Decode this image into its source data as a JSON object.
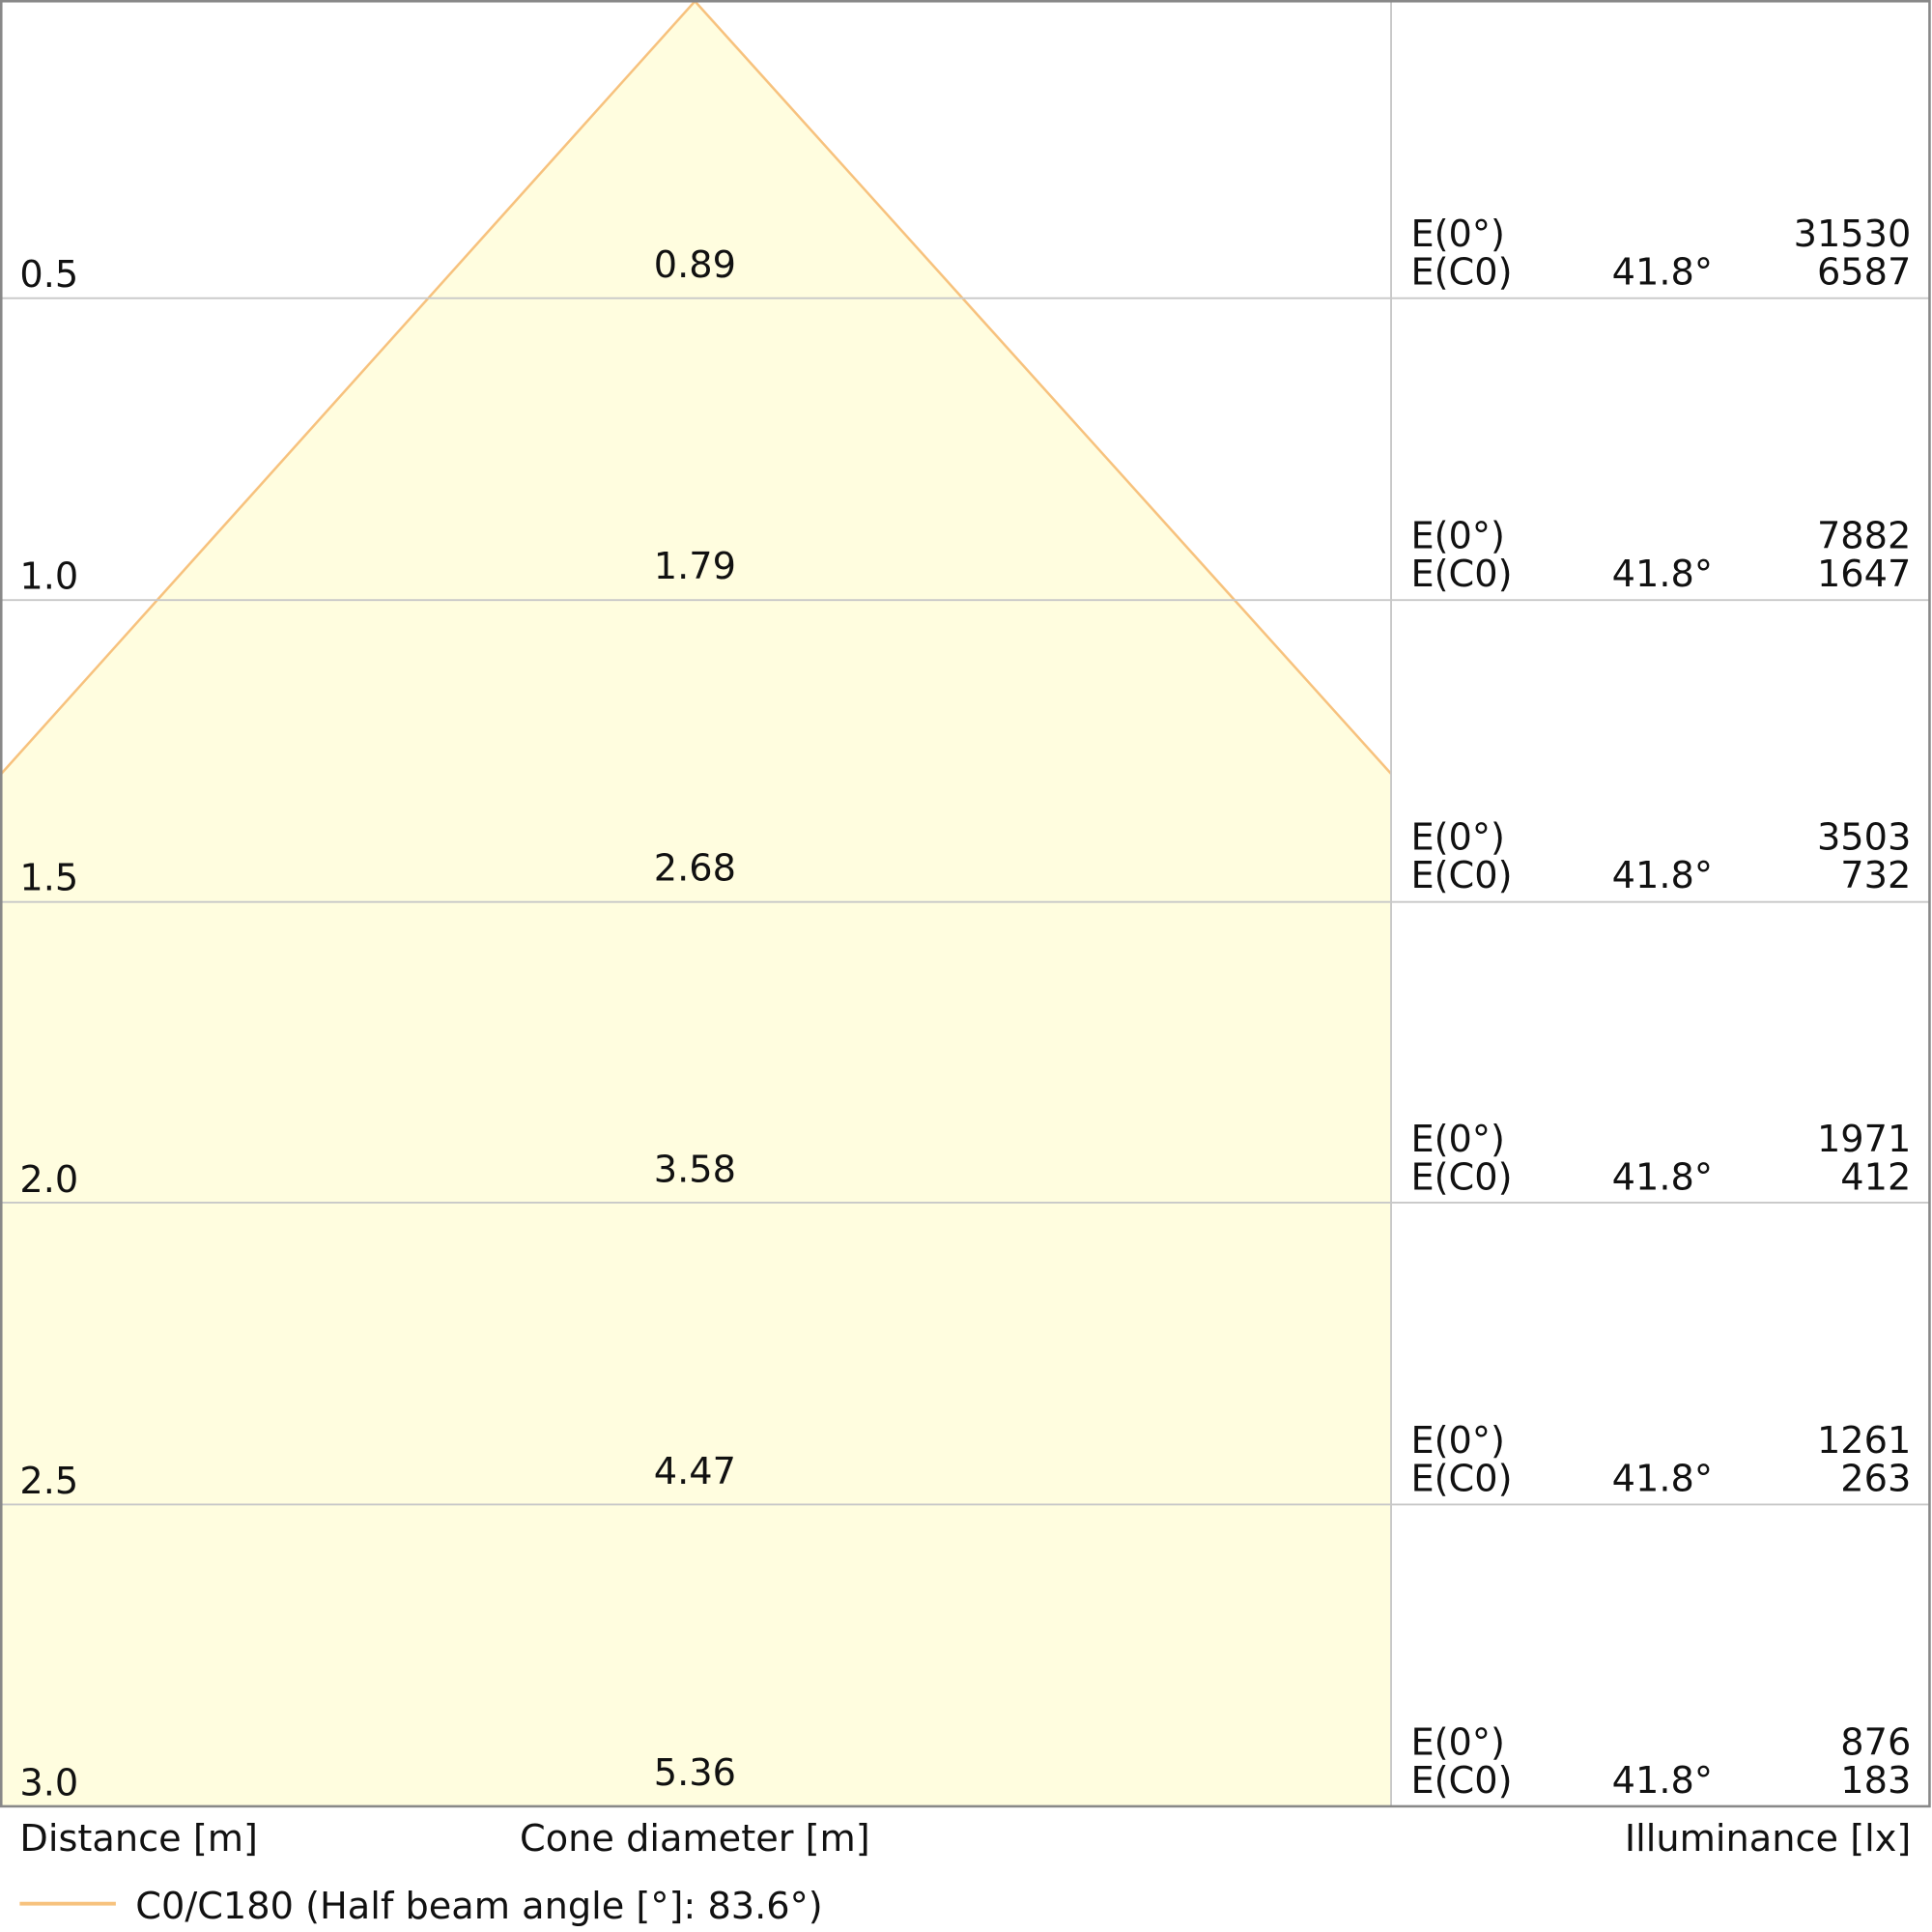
{
  "rows": [
    {
      "distance": "0.5",
      "cone": "0.89",
      "e0_label": "E(0°)",
      "e0": "31530",
      "ec0_label": "E(C0)",
      "ec0_angle": "41.8°",
      "ec0": "6587"
    },
    {
      "distance": "1.0",
      "cone": "1.79",
      "e0_label": "E(0°)",
      "e0": "7882",
      "ec0_label": "E(C0)",
      "ec0_angle": "41.8°",
      "ec0": "1647"
    },
    {
      "distance": "1.5",
      "cone": "2.68",
      "e0_label": "E(0°)",
      "e0": "3503",
      "ec0_label": "E(C0)",
      "ec0_angle": "41.8°",
      "ec0": "732"
    },
    {
      "distance": "2.0",
      "cone": "3.58",
      "e0_label": "E(0°)",
      "e0": "1971",
      "ec0_label": "E(C0)",
      "ec0_angle": "41.8°",
      "ec0": "412"
    },
    {
      "distance": "2.5",
      "cone": "4.47",
      "e0_label": "E(0°)",
      "e0": "1261",
      "ec0_label": "E(C0)",
      "ec0_angle": "41.8°",
      "ec0": "263"
    },
    {
      "distance": "3.0",
      "cone": "5.36",
      "e0_label": "E(0°)",
      "e0": "876",
      "ec0_label": "E(C0)",
      "ec0_angle": "41.8°",
      "ec0": "183"
    }
  ],
  "footer": {
    "distance_label": "Distance [m]",
    "cone_label": "Cone diameter [m]",
    "illuminance_label": "Illuminance [lx]"
  },
  "legend": {
    "label": "C0/C180 (Half beam angle [°]: 83.6°)"
  }
}
